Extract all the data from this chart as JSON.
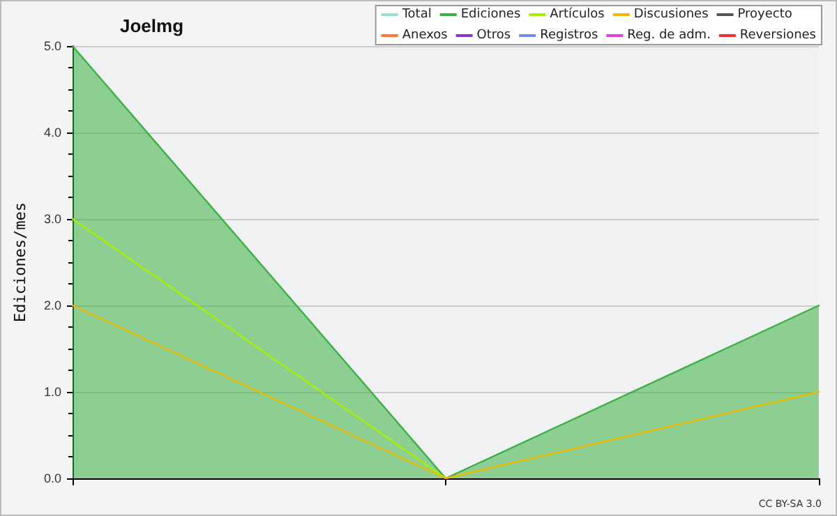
{
  "chart_data": {
    "type": "line",
    "title": "Joelmg",
    "ylabel": "Ediciones/mes",
    "annotations": [
      "CC BY-SA 3.0"
    ],
    "categories": [
      null,
      null,
      null
    ],
    "series": [
      {
        "name": "Total",
        "color": "#99dddd",
        "values": [
          null,
          null,
          null
        ]
      },
      {
        "name": "Ediciones",
        "color": "#3cb043",
        "type": "area",
        "values": [
          5,
          0,
          2
        ]
      },
      {
        "name": "Artículos",
        "color": "#aaee00",
        "values": [
          3,
          0,
          null
        ]
      },
      {
        "name": "Discusiones",
        "color": "#eebb00",
        "values": [
          2,
          0,
          1
        ]
      },
      {
        "name": "Proyecto",
        "color": "#555555",
        "values": [
          null,
          null,
          null
        ]
      },
      {
        "name": "Anexos",
        "color": "#ff7733",
        "values": [
          null,
          null,
          null
        ]
      },
      {
        "name": "Otros",
        "color": "#8833cc",
        "values": [
          null,
          null,
          null
        ]
      },
      {
        "name": "Registros",
        "color": "#7788ee",
        "values": [
          null,
          null,
          null
        ]
      },
      {
        "name": "Reg. de adm.",
        "color": "#dd44dd",
        "values": [
          null,
          null,
          null
        ]
      },
      {
        "name": "Reversiones",
        "color": "#ee3333",
        "values": [
          null,
          null,
          null
        ]
      }
    ],
    "ylim": [
      0,
      5
    ],
    "yticks": [
      {
        "value": 0,
        "label": "0.0"
      },
      {
        "value": 1,
        "label": "1.0"
      },
      {
        "value": 2,
        "label": "2.0"
      },
      {
        "value": 3,
        "label": "3.0"
      },
      {
        "value": 4,
        "label": "4.0"
      },
      {
        "value": 5,
        "label": "5.0"
      }
    ],
    "grid": "y",
    "legend": "top right",
    "marker": "none"
  }
}
